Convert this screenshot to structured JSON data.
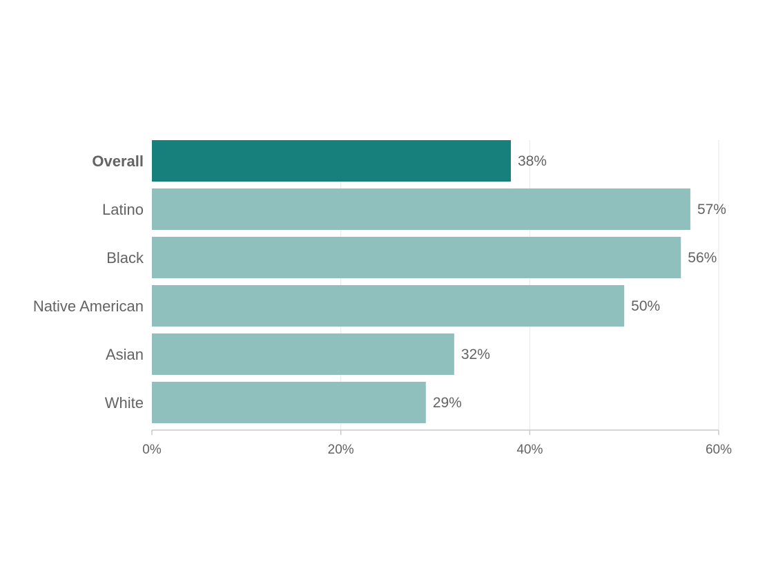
{
  "chart_data": {
    "type": "bar",
    "orientation": "horizontal",
    "categories": [
      "Overall",
      "Latino",
      "Black",
      "Native American",
      "Asian",
      "White"
    ],
    "values": [
      38,
      57,
      56,
      50,
      32,
      29
    ],
    "value_labels": [
      "38%",
      "57%",
      "56%",
      "50%",
      "32%",
      "29%"
    ],
    "highlighted_category": "Overall",
    "xlim": [
      0,
      60
    ],
    "x_ticks": [
      0,
      20,
      40,
      60
    ],
    "x_tick_labels": [
      "0%",
      "20%",
      "40%",
      "60%"
    ],
    "grid": "vertical",
    "legend": "none",
    "title": "",
    "xlabel": "",
    "ylabel": ""
  },
  "colors": {
    "highlight_bar": "#17807d",
    "bar": "#8fc0bd",
    "text": "#636363"
  }
}
